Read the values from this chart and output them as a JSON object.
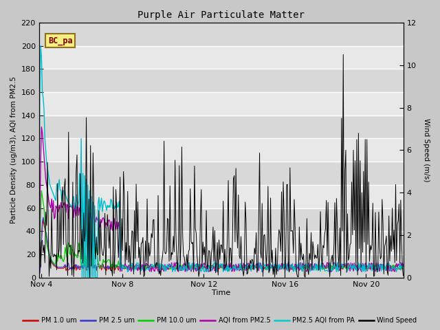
{
  "title": "Purple Air Particulate Matter",
  "ylabel_left": "Particle Density (ug/m3), AQI from PM2.5",
  "ylabel_right": "Wind Speed (m/s)",
  "xlabel": "Time",
  "annotation_text": "BC_pa",
  "ylim_left": [
    0,
    220
  ],
  "ylim_right": [
    0,
    12
  ],
  "yticks_left": [
    0,
    20,
    40,
    60,
    80,
    100,
    120,
    140,
    160,
    180,
    200,
    220
  ],
  "yticks_right": [
    0,
    2,
    4,
    6,
    8,
    10,
    12
  ],
  "fig_facecolor": "#c8c8c8",
  "plot_facecolor": "#e8e8e8",
  "legend_entries": [
    "PM 1.0 um",
    "PM 2.5 um",
    "PM 10.0 um",
    "AQI from PM2.5",
    "PM2.5 AQI from PA",
    "Wind Speed"
  ],
  "legend_colors": [
    "#cc0000",
    "#3333cc",
    "#00cc00",
    "#aa00aa",
    "#00cccc",
    "#000000"
  ],
  "x_tick_labels": [
    "Nov 4",
    "Nov 8",
    "Nov 12",
    "Nov 16",
    "Nov 20"
  ],
  "x_tick_positions": [
    3,
    99,
    195,
    291,
    387
  ],
  "total_points": 432
}
